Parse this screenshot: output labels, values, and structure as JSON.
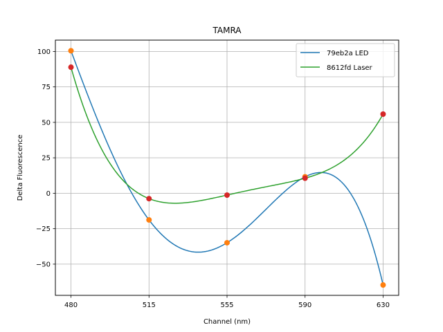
{
  "chart_data": {
    "type": "line",
    "title": "TAMRA",
    "xlabel": "Channel (nm)",
    "ylabel": "Delta Fluorescence",
    "categories": [
      "480",
      "515",
      "555",
      "590",
      "630"
    ],
    "ylim": [
      -72,
      108
    ],
    "yticks": [
      -50,
      -25,
      0,
      25,
      50,
      75,
      100
    ],
    "yticklabels": [
      "−50",
      "−25",
      "0",
      "25",
      "50",
      "75",
      "100"
    ],
    "grid": true,
    "legend_position": "top-right",
    "series": [
      {
        "name": "79eb2a LED",
        "color": "#1f77b4",
        "marker_color": "#ff7f0e",
        "values": [
          100.5,
          -18.8,
          -34.9,
          11.6,
          -64.7
        ],
        "curve": "interpolated"
      },
      {
        "name": "8612fd Laser",
        "color": "#2ca02c",
        "marker_color": "#d62728",
        "values": [
          88.9,
          -3.8,
          -1.3,
          10.6,
          55.8
        ],
        "curve": "interpolated"
      }
    ]
  }
}
